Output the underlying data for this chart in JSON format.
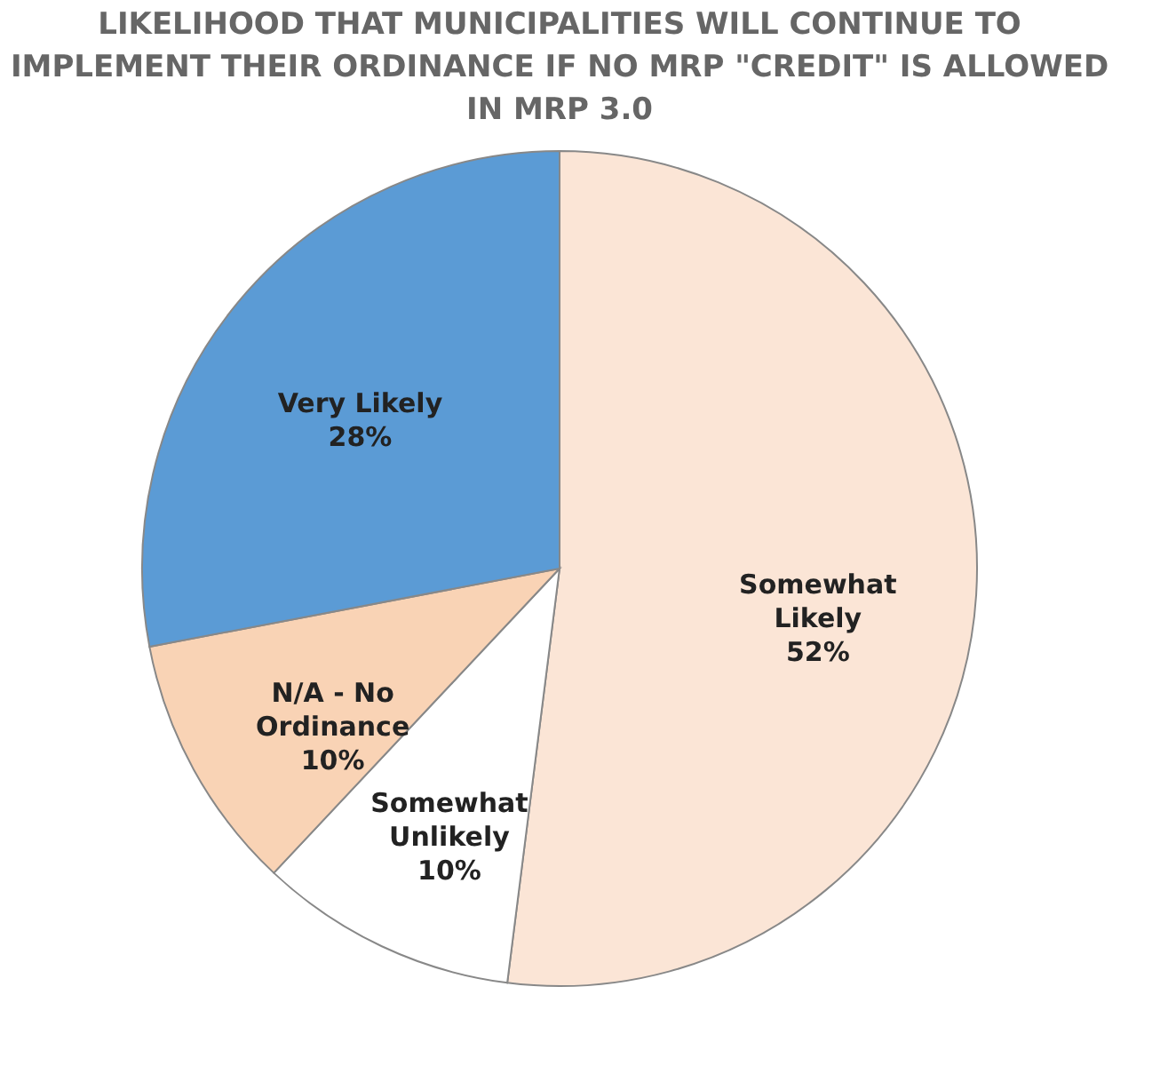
{
  "chart_data": {
    "type": "pie",
    "title": "LIKELIHOOD THAT MUNICIPALITIES WILL CONTINUE TO IMPLEMENT THEIR ORDINANCE IF NO MRP \"CREDIT\" IS ALLOWED IN MRP 3.0",
    "categories": [
      "Somewhat Likely",
      "Somewhat Unlikely",
      "N/A - No Ordinance",
      "Very Likely"
    ],
    "values": [
      52,
      10,
      10,
      28
    ],
    "colors": [
      "#fbe5d6",
      "#ffffff",
      "#f9d3b5",
      "#5b9bd5"
    ],
    "value_labels": [
      "52%",
      "10%",
      "10%",
      "28%"
    ],
    "legend": false
  }
}
